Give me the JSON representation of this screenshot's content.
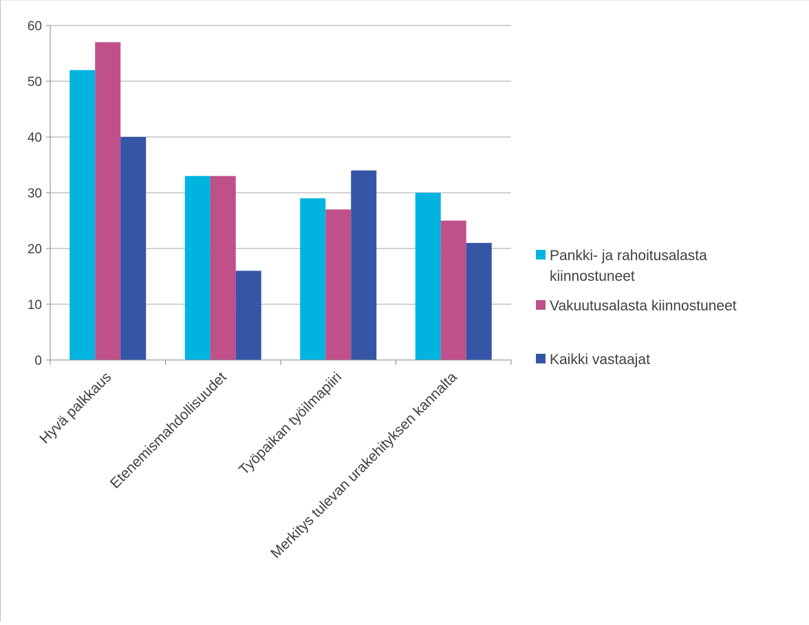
{
  "chart_data": {
    "type": "bar",
    "categories": [
      "Hyvä palkkaus",
      "Etenemismahdollisuudet",
      "Työpaikan työilmapiiri",
      "Merkitys tulevan urakehityksen kannalta"
    ],
    "series": [
      {
        "name": "Pankki- ja rahoitusalasta kiinnostuneet",
        "values": [
          52,
          33,
          29,
          30
        ],
        "color": "#00b4e0"
      },
      {
        "name": "Vakuutusalasta kiinnostuneet",
        "values": [
          57,
          33,
          27,
          25
        ],
        "color": "#c0508a"
      },
      {
        "name": "Kaikki vastaajat",
        "values": [
          40,
          16,
          34,
          21
        ],
        "color": "#3556a6"
      }
    ],
    "ylim": [
      0,
      60
    ],
    "yticks": [
      0,
      10,
      20,
      30,
      40,
      50,
      60
    ],
    "grid": true,
    "legend_position": "right",
    "legend_lines": [
      [
        "Pankki- ja rahoitusalasta",
        "kiinnostuneet"
      ],
      [
        "Vakuutusalasta kiinnostuneet"
      ],
      [
        "Kaikki vastaajat"
      ]
    ]
  }
}
